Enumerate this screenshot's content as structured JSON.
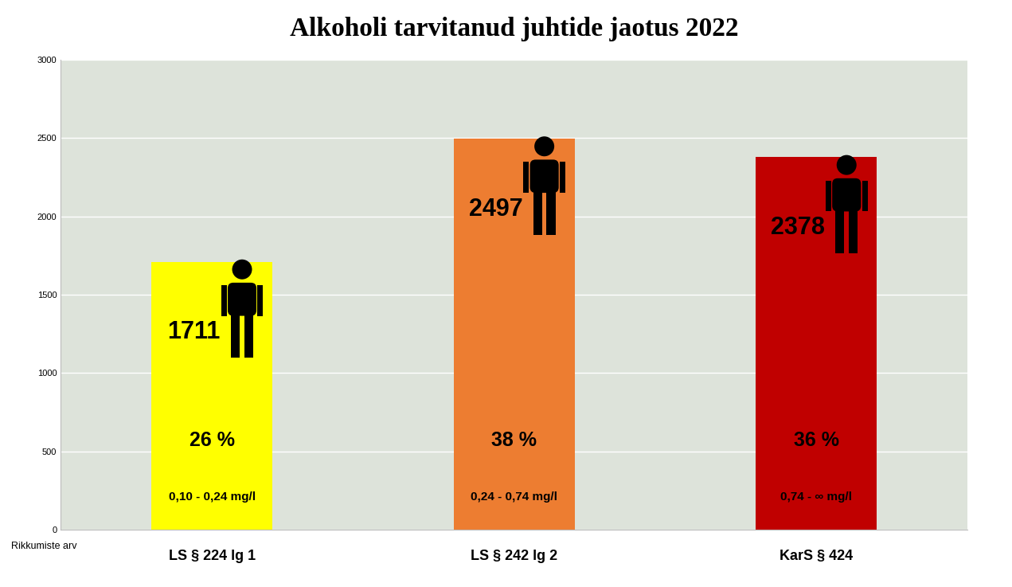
{
  "chart_data": {
    "type": "bar",
    "title": "Alkoholi tarvitanud juhtide jaotus 2022",
    "y_label": "Rikkumiste arv",
    "categories": [
      "LS § 224 lg 1",
      "LS § 242 lg 2",
      "KarS § 424"
    ],
    "values": [
      1711,
      2497,
      2378
    ],
    "colors": [
      "#ffff00",
      "#ed7d31",
      "#c00000"
    ],
    "shares": [
      26,
      38,
      36
    ],
    "share_labels": [
      "26 %",
      "38 %",
      "36 %"
    ],
    "ranges": [
      "0,10 - 0,24 mg/l",
      "0,24 - 0,74 mg/l",
      "0,74 - ∞ mg/l"
    ],
    "ylim": [
      0,
      3000
    ],
    "yticks": [
      0,
      500,
      1000,
      1500,
      2000,
      2500,
      3000
    ],
    "grid": true,
    "data_labels": true
  }
}
